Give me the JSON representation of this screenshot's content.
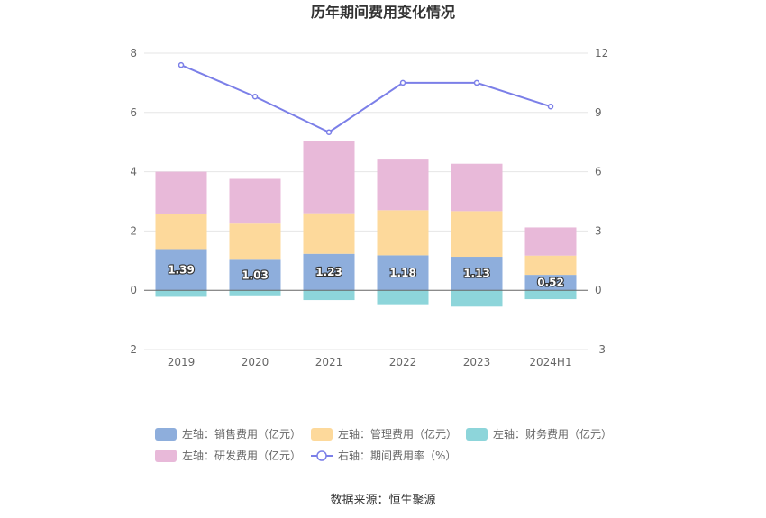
{
  "chart_data": {
    "type": "bar",
    "title": "历年期间费用变化情况",
    "categories": [
      "2019",
      "2020",
      "2021",
      "2022",
      "2023",
      "2024H1"
    ],
    "left_axis": {
      "min": -2,
      "max": 8,
      "ticks": [
        "-2",
        "0",
        "2",
        "4",
        "6",
        "8"
      ]
    },
    "right_axis": {
      "min": -3,
      "max": 12,
      "ticks": [
        "-3",
        "0",
        "3",
        "6",
        "9",
        "12"
      ]
    },
    "series": [
      {
        "name": "左轴：销售费用（亿元）",
        "axis": "left",
        "color": "#8eaedc",
        "values": [
          1.39,
          1.03,
          1.23,
          1.18,
          1.13,
          0.52
        ],
        "labels": [
          "1.39",
          "1.03",
          "1.23",
          "1.18",
          "1.13",
          "0.52"
        ]
      },
      {
        "name": "左轴：管理费用（亿元）",
        "axis": "left",
        "color": "#fdd99b",
        "values": [
          1.2,
          1.22,
          1.37,
          1.52,
          1.54,
          0.65
        ]
      },
      {
        "name": "左轴：财务费用（亿元）",
        "axis": "left",
        "color": "#8dd5da",
        "values": [
          -0.22,
          -0.2,
          -0.33,
          -0.5,
          -0.55,
          -0.3
        ]
      },
      {
        "name": "左轴：研发费用（亿元）",
        "axis": "left",
        "color": "#e8b9d9",
        "values": [
          1.41,
          1.51,
          2.43,
          1.71,
          1.6,
          0.95
        ]
      },
      {
        "name": "右轴：期间费用率（%）",
        "axis": "right",
        "type": "line",
        "color": "#7b7fe8",
        "values": [
          11.4,
          9.8,
          8.0,
          10.5,
          10.5,
          9.3
        ]
      }
    ],
    "legend_position": "bottom"
  },
  "source": "数据来源：恒生聚源"
}
